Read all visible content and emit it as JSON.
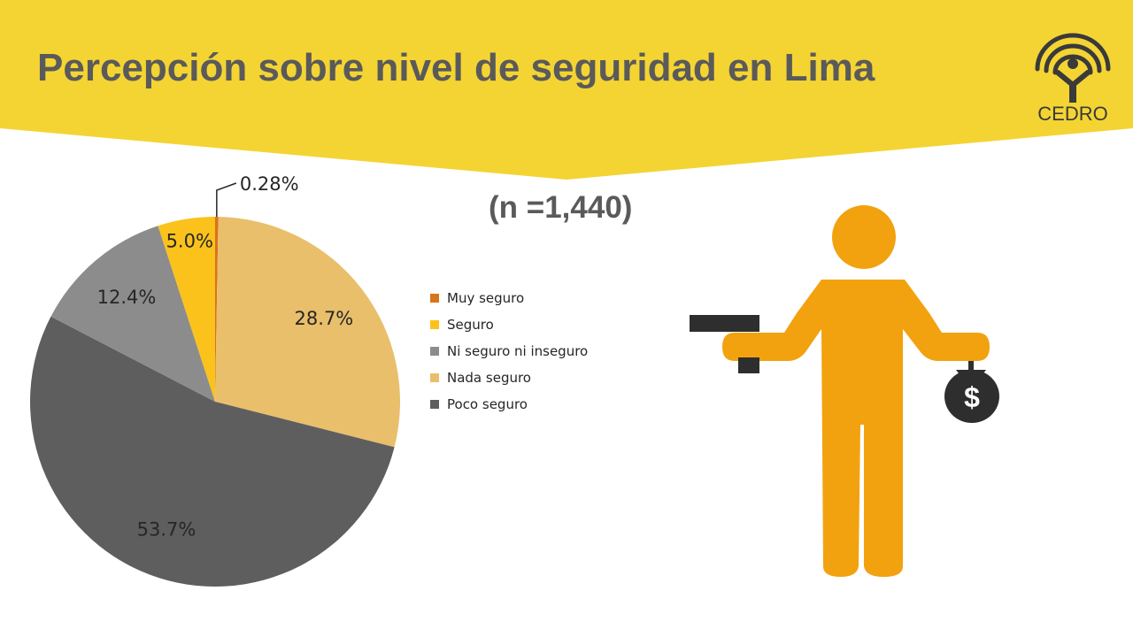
{
  "header": {
    "title": "Percepción sobre nivel de seguridad en Lima",
    "logo_text": "CEDRO",
    "banner_color": "#f4d433"
  },
  "sample_size": "(n =1,440)",
  "chart_data": {
    "type": "pie",
    "title": "",
    "legend_position": "right",
    "series": [
      {
        "name": "Muy seguro",
        "value": 0.28,
        "label": "0.28%",
        "color": "#d9731c"
      },
      {
        "name": "Seguro",
        "value": 5.0,
        "label": "5.0%",
        "color": "#fbc21b"
      },
      {
        "name": "Ni seguro ni inseguro",
        "value": 12.4,
        "label": "12.4%",
        "color": "#8c8c8c"
      },
      {
        "name": "Nada seguro",
        "value": 28.7,
        "label": "28.7%",
        "color": "#e9bf6c"
      },
      {
        "name": "Poco seguro",
        "value": 53.7,
        "label": "53.7%",
        "color": "#5e5e5e"
      }
    ],
    "legend_order": [
      "Muy seguro",
      "Seguro",
      "Ni seguro ni inseguro",
      "Nada seguro",
      "Poco seguro"
    ]
  },
  "illustration": {
    "icon_name": "robbery-figure-icon",
    "money_symbol": "$",
    "figure_color": "#f2a20f"
  }
}
